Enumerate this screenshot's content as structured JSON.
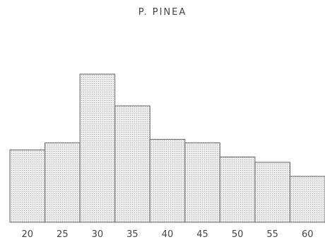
{
  "chart_data": {
    "type": "bar",
    "title": "P. PINEA",
    "xlabel": "",
    "ylabel": "",
    "categories": [
      "20",
      "25",
      "30",
      "35",
      "40",
      "45",
      "50",
      "55",
      "60"
    ],
    "values": [
      20.5,
      22.5,
      42,
      33,
      23.5,
      22.5,
      18.5,
      17,
      13
    ],
    "ylim": [
      0,
      50
    ],
    "grid": false,
    "colors": {
      "bar_fill": "#e6e6e6",
      "bar_stroke": "#666666",
      "dots": "#9a9a9a"
    }
  }
}
